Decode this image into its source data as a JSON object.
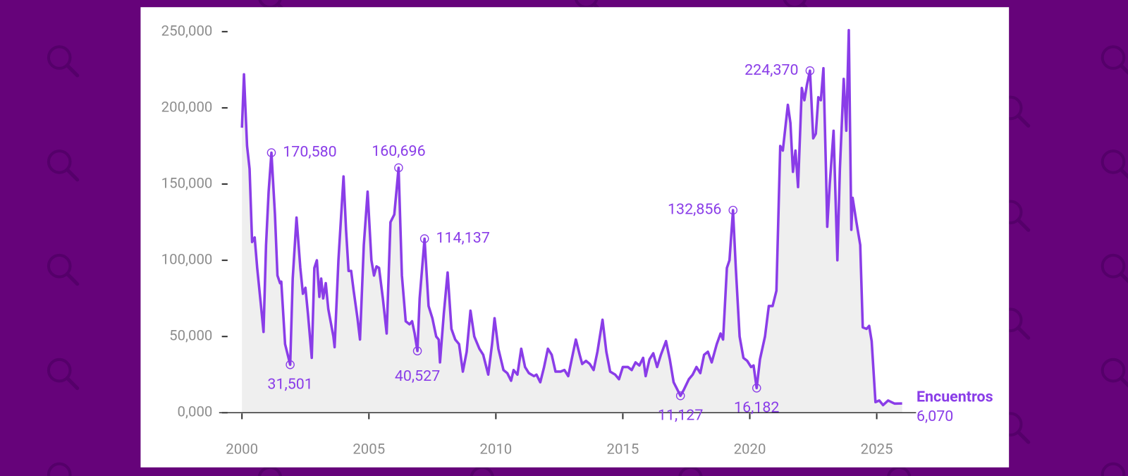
{
  "chart_data": {
    "type": "line",
    "x": [
      2000.0,
      2000.08,
      2000.2,
      2000.3,
      2000.4,
      2000.5,
      2000.6,
      2000.75,
      2000.85,
      2000.95,
      2001.05,
      2001.16,
      2001.3,
      2001.4,
      2001.5,
      2001.55,
      2001.7,
      2001.9,
      2002.0,
      2002.15,
      2002.3,
      2002.4,
      2002.5,
      2002.6,
      2002.75,
      2002.85,
      2002.95,
      2003.05,
      2003.12,
      2003.2,
      2003.3,
      2003.4,
      2003.6,
      2003.65,
      2003.8,
      2004.0,
      2004.1,
      2004.2,
      2004.3,
      2004.4,
      2004.55,
      2004.65,
      2004.8,
      2004.95,
      2005.1,
      2005.2,
      2005.3,
      2005.4,
      2005.55,
      2005.7,
      2005.85,
      2006.0,
      2006.17,
      2006.3,
      2006.45,
      2006.6,
      2006.7,
      2006.8,
      2006.91,
      2007.0,
      2007.19,
      2007.35,
      2007.5,
      2007.65,
      2007.75,
      2007.8,
      2007.95,
      2008.1,
      2008.25,
      2008.4,
      2008.55,
      2008.7,
      2008.85,
      2009.0,
      2009.15,
      2009.35,
      2009.5,
      2009.7,
      2009.85,
      2009.95,
      2010.1,
      2010.3,
      2010.45,
      2010.6,
      2010.7,
      2010.85,
      2011.0,
      2011.15,
      2011.3,
      2011.5,
      2011.6,
      2011.75,
      2011.9,
      2012.05,
      2012.2,
      2012.35,
      2012.55,
      2012.7,
      2012.85,
      2013.05,
      2013.15,
      2013.3,
      2013.4,
      2013.55,
      2013.7,
      2013.85,
      2014.0,
      2014.2,
      2014.35,
      2014.5,
      2014.7,
      2014.85,
      2015.0,
      2015.2,
      2015.35,
      2015.5,
      2015.65,
      2015.8,
      2015.9,
      2016.05,
      2016.2,
      2016.35,
      2016.5,
      2016.7,
      2016.85,
      2017.0,
      2017.27,
      2017.4,
      2017.6,
      2017.75,
      2017.9,
      2018.05,
      2018.2,
      2018.35,
      2018.5,
      2018.7,
      2018.85,
      2018.95,
      2019.1,
      2019.2,
      2019.34,
      2019.45,
      2019.6,
      2019.75,
      2019.9,
      2020.05,
      2020.15,
      2020.27,
      2020.4,
      2020.6,
      2020.75,
      2020.9,
      2021.05,
      2021.2,
      2021.3,
      2021.5,
      2021.6,
      2021.7,
      2021.8,
      2021.9,
      2022.05,
      2022.15,
      2022.25,
      2022.37,
      2022.5,
      2022.6,
      2022.7,
      2022.8,
      2022.9,
      2023.0,
      2023.05,
      2023.15,
      2023.3,
      2023.45,
      2023.55,
      2023.7,
      2023.8,
      2023.9,
      2024.0,
      2024.05,
      2024.2,
      2024.35,
      2024.45,
      2024.6,
      2024.7,
      2024.8,
      2024.95,
      2025.1,
      2025.25,
      2025.45,
      2025.7,
      2026.0
    ],
    "series": [
      {
        "name": "Encuentros",
        "color": "#8a3de8",
        "values": [
          187000,
          222000,
          175000,
          160000,
          112000,
          115000,
          95000,
          70000,
          53000,
          110000,
          145000,
          170580,
          130000,
          90000,
          85000,
          86000,
          45000,
          31501,
          88000,
          128000,
          95000,
          78000,
          82000,
          65000,
          36000,
          95000,
          100000,
          76000,
          88000,
          75000,
          85000,
          68000,
          50000,
          43000,
          100000,
          155000,
          120000,
          93000,
          93000,
          80000,
          62000,
          48000,
          110000,
          145000,
          100000,
          90000,
          96000,
          95000,
          75000,
          52000,
          125000,
          130000,
          160696,
          90000,
          60000,
          58000,
          60000,
          52000,
          40527,
          75000,
          114137,
          70000,
          62000,
          50000,
          48000,
          33000,
          65000,
          92000,
          55000,
          48000,
          45000,
          27000,
          40000,
          67000,
          50000,
          42000,
          38000,
          25000,
          45000,
          62000,
          42000,
          28000,
          26000,
          21000,
          28000,
          25000,
          42000,
          30000,
          26000,
          24000,
          25000,
          20000,
          30000,
          42000,
          38000,
          27000,
          27000,
          28000,
          24000,
          40000,
          48000,
          38000,
          32000,
          34000,
          32000,
          28000,
          40000,
          61000,
          40000,
          27000,
          25000,
          22000,
          30000,
          30000,
          28000,
          33000,
          31000,
          36000,
          24000,
          35000,
          39000,
          30000,
          38000,
          47000,
          35000,
          20000,
          11127,
          15000,
          22000,
          25000,
          30000,
          26000,
          38000,
          40000,
          33000,
          45000,
          52000,
          48000,
          95000,
          100000,
          132856,
          95000,
          50000,
          36000,
          34000,
          30000,
          31000,
          16182,
          35000,
          50000,
          70000,
          70000,
          80000,
          175000,
          172000,
          202000,
          190000,
          158000,
          172000,
          148000,
          213000,
          205000,
          215000,
          224370,
          180000,
          183000,
          207000,
          205000,
          226000,
          160000,
          122000,
          150000,
          185000,
          100000,
          160000,
          219000,
          185000,
          251000,
          120000,
          141000,
          125000,
          110000,
          56000,
          55000,
          57000,
          47000,
          7000,
          8000,
          5000,
          8000,
          6000,
          6070
        ],
        "end_label": "6,070"
      }
    ],
    "annotations": [
      {
        "x": 2001.16,
        "y": 170580,
        "label": "170,580"
      },
      {
        "x": 2001.9,
        "y": 31501,
        "label": "31,501"
      },
      {
        "x": 2006.17,
        "y": 160696,
        "label": "160,696"
      },
      {
        "x": 2006.91,
        "y": 40527,
        "label": "40,527"
      },
      {
        "x": 2007.19,
        "y": 114137,
        "label": "114,137"
      },
      {
        "x": 2017.27,
        "y": 11127,
        "label": "11,127"
      },
      {
        "x": 2019.34,
        "y": 132856,
        "label": "132,856"
      },
      {
        "x": 2020.27,
        "y": 16182,
        "label": "16,182"
      },
      {
        "x": 2022.37,
        "y": 224370,
        "label": "224,370"
      }
    ],
    "xlim": [
      1999.1,
      2026.55
    ],
    "xticks": [
      2000,
      2005,
      2010,
      2015,
      2020,
      2025
    ],
    "ylim": [
      0,
      250000
    ],
    "yticks": [
      {
        "value": 0,
        "label": "0,000"
      },
      {
        "value": 50000,
        "label": "50,000"
      },
      {
        "value": 100000,
        "label": "100,000"
      },
      {
        "value": 150000,
        "label": "150,000"
      },
      {
        "value": 200000,
        "label": "200,000"
      },
      {
        "value": 250000,
        "label": "250,000"
      }
    ],
    "fill_area": true
  }
}
